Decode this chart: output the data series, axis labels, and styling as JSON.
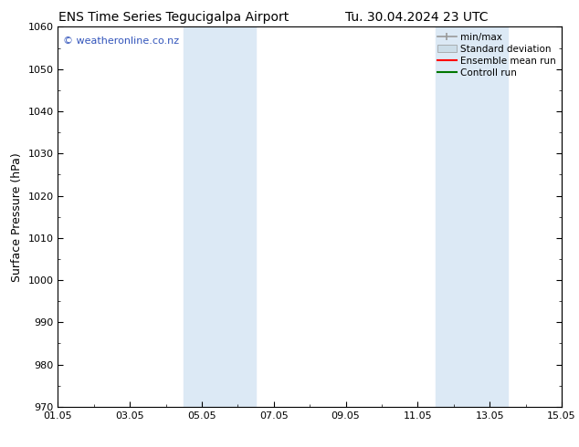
{
  "title_left": "ENS Time Series Tegucigalpa Airport",
  "title_right": "Tu. 30.04.2024 23 UTC",
  "ylabel": "Surface Pressure (hPa)",
  "ylim": [
    970,
    1060
  ],
  "yticks": [
    970,
    980,
    990,
    1000,
    1010,
    1020,
    1030,
    1040,
    1050,
    1060
  ],
  "xlim_start": 0,
  "xlim_end": 14,
  "xtick_labels": [
    "01.05",
    "03.05",
    "05.05",
    "07.05",
    "09.05",
    "11.05",
    "13.05",
    "15.05"
  ],
  "xtick_positions": [
    0,
    2,
    4,
    6,
    8,
    10,
    12,
    14
  ],
  "watermark": "© weatheronline.co.nz",
  "watermark_color": "#3355bb",
  "shaded_bands": [
    {
      "x_start": 3.5,
      "x_end": 5.5,
      "color": "#dce9f5"
    },
    {
      "x_start": 10.5,
      "x_end": 12.5,
      "color": "#dce9f5"
    }
  ],
  "legend_items": [
    {
      "label": "min/max",
      "color": "#999999",
      "style": "line_with_caps"
    },
    {
      "label": "Standard deviation",
      "color": "#ccdde8",
      "style": "filled_rect"
    },
    {
      "label": "Ensemble mean run",
      "color": "#ff0000",
      "style": "line"
    },
    {
      "label": "Controll run",
      "color": "#007700",
      "style": "line"
    }
  ],
  "background_color": "#ffffff",
  "tick_color": "#000000",
  "title_fontsize": 10,
  "axis_label_fontsize": 9,
  "tick_fontsize": 8,
  "legend_fontsize": 7.5
}
